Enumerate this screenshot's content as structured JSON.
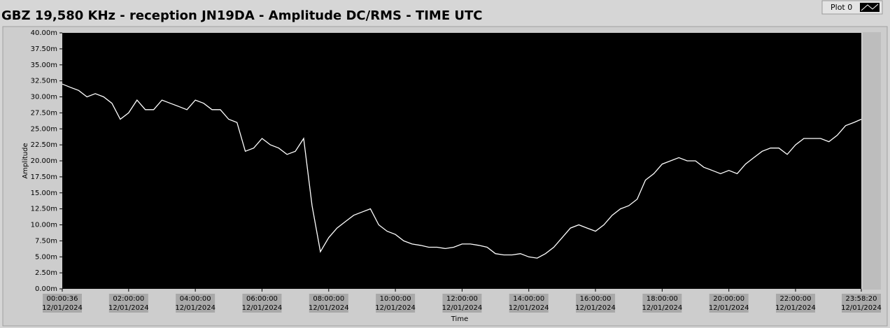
{
  "chart_data": {
    "type": "line",
    "title": "GBZ  19,580 KHz - reception JN19DA -  Amplitude DC/RMS   - TIME UTC",
    "x_label": "Time",
    "y_label": "Amplitude",
    "series": [
      {
        "name": "Plot 0",
        "color": "#ffffff",
        "x": [
          36,
          900,
          1800,
          2700,
          3600,
          4500,
          5400,
          6300,
          7200,
          8100,
          9000,
          9900,
          10800,
          11700,
          12600,
          13500,
          14400,
          15300,
          16200,
          17100,
          18000,
          18900,
          19800,
          20700,
          21600,
          22500,
          23400,
          24300,
          25200,
          26100,
          27000,
          27900,
          28800,
          29700,
          30600,
          31500,
          32400,
          33300,
          34200,
          35100,
          36000,
          36900,
          37800,
          38700,
          39600,
          40500,
          41400,
          42300,
          43200,
          44100,
          45000,
          45900,
          46800,
          47700,
          48600,
          49500,
          50400,
          51300,
          52200,
          53100,
          54000,
          54900,
          55800,
          56700,
          57600,
          58500,
          59400,
          60300,
          61200,
          62100,
          63000,
          63900,
          64800,
          65700,
          66600,
          67500,
          68400,
          69300,
          70200,
          71100,
          72000,
          72900,
          73800,
          74700,
          75600,
          76500,
          77400,
          78300,
          79200,
          80100,
          81000,
          81900,
          82800,
          83700,
          84600,
          85500,
          86300
        ],
        "values": [
          32,
          31.5,
          31,
          30,
          30.5,
          30,
          29,
          26.5,
          27.5,
          29.5,
          28,
          28,
          29.5,
          29,
          28.5,
          28,
          29.5,
          29,
          28,
          28,
          26.5,
          26,
          21.5,
          22,
          23.5,
          22.5,
          22,
          21,
          21.5,
          23.5,
          13,
          5.8,
          8,
          9.5,
          10.5,
          11.5,
          12,
          12.5,
          10,
          9,
          8.5,
          7.5,
          7,
          6.8,
          6.5,
          6.5,
          6.3,
          6.5,
          7,
          7,
          6.8,
          6.5,
          5.5,
          5.3,
          5.3,
          5.5,
          5,
          4.8,
          5.5,
          6.5,
          8,
          9.5,
          10,
          9.5,
          9,
          10,
          11.5,
          12.5,
          13,
          14,
          17,
          18,
          19.5,
          20,
          20.5,
          20,
          20,
          19,
          18.5,
          18,
          18.5,
          18,
          19.5,
          20.5,
          21.5,
          22,
          22,
          21,
          22.5,
          23.5,
          23.5,
          23.5,
          23,
          24,
          25.5,
          26,
          26.5
        ]
      }
    ],
    "xlim": [
      36,
      86300
    ],
    "xticks": [
      {
        "value": 36,
        "label": "00:00:36",
        "date": "12/01/2024"
      },
      {
        "value": 7200,
        "label": "02:00:00",
        "date": "12/01/2024"
      },
      {
        "value": 14400,
        "label": "04:00:00",
        "date": "12/01/2024"
      },
      {
        "value": 21600,
        "label": "06:00:00",
        "date": "12/01/2024"
      },
      {
        "value": 28800,
        "label": "08:00:00",
        "date": "12/01/2024"
      },
      {
        "value": 36000,
        "label": "10:00:00",
        "date": "12/01/2024"
      },
      {
        "value": 43200,
        "label": "12:00:00",
        "date": "12/01/2024"
      },
      {
        "value": 50400,
        "label": "14:00:00",
        "date": "12/01/2024"
      },
      {
        "value": 57600,
        "label": "16:00:00",
        "date": "12/01/2024"
      },
      {
        "value": 64800,
        "label": "18:00:00",
        "date": "12/01/2024"
      },
      {
        "value": 72000,
        "label": "20:00:00",
        "date": "12/01/2024"
      },
      {
        "value": 79200,
        "label": "22:00:00",
        "date": "12/01/2024"
      },
      {
        "value": 86300,
        "label": "23:58:20",
        "date": "12/01/2024"
      }
    ],
    "ylim": [
      0,
      40
    ],
    "yticks": [
      {
        "value": 0,
        "label": "0.00m"
      },
      {
        "value": 2.5,
        "label": "2.50m"
      },
      {
        "value": 5,
        "label": "5.00m"
      },
      {
        "value": 7.5,
        "label": "7.50m"
      },
      {
        "value": 10,
        "label": "10.00m"
      },
      {
        "value": 12.5,
        "label": "12.50m"
      },
      {
        "value": 15,
        "label": "15.00m"
      },
      {
        "value": 17.5,
        "label": "17.50m"
      },
      {
        "value": 20,
        "label": "20.00m"
      },
      {
        "value": 22.5,
        "label": "22.50m"
      },
      {
        "value": 25,
        "label": "25.00m"
      },
      {
        "value": 27.5,
        "label": "27.50m"
      },
      {
        "value": 30,
        "label": "30.00m"
      },
      {
        "value": 32.5,
        "label": "32.50m"
      },
      {
        "value": 35,
        "label": "35.00m"
      },
      {
        "value": 37.5,
        "label": "37.50m"
      },
      {
        "value": 40,
        "label": "40.00m"
      }
    ],
    "grid": false,
    "background": "#000000"
  }
}
